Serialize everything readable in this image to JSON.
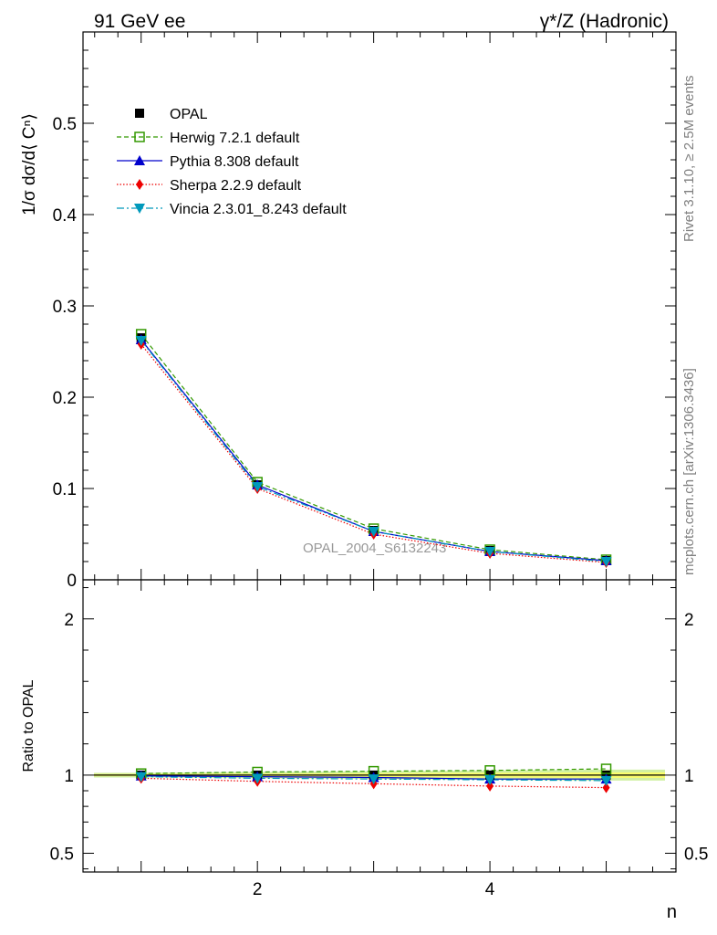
{
  "header": {
    "left": "91 GeV ee",
    "right": "γ*/Z (Hadronic)"
  },
  "side_labels": {
    "rivet": "Rivet 3.1.10, ≥ 2.5M events",
    "mcplots": "mcplots.cern.ch [arXiv:1306.3436]"
  },
  "reference_label": "OPAL_2004_S6132243",
  "colors": {
    "opal": "#000000",
    "herwig": "#339900",
    "pythia": "#0000cc",
    "sherpa": "#ee0000",
    "vincia": "#0099bb",
    "band_inner": "#ffff66",
    "band_outer": "#ccee99"
  },
  "chart_data": [
    {
      "type": "line",
      "panel": "main",
      "ylabel": "1/σ dσ/d⟨ Cⁿ⟩",
      "ylim": [
        0,
        0.6
      ],
      "xlim": [
        0.5,
        5.6
      ],
      "yticks": [
        0,
        0.1,
        0.2,
        0.3,
        0.4,
        0.5
      ],
      "ytick_labels": [
        "0",
        "0.1",
        "0.2",
        "0.3",
        "0.4",
        "0.5"
      ],
      "legend_position": "top-left",
      "x": [
        1,
        2,
        3,
        4,
        5
      ],
      "series": [
        {
          "name": "OPAL",
          "values": [
            0.265,
            0.104,
            0.054,
            0.032,
            0.021
          ]
        },
        {
          "name": "Herwig 7.2.1 default",
          "values": [
            0.269,
            0.107,
            0.056,
            0.033,
            0.022
          ]
        },
        {
          "name": "Pythia 8.308 default",
          "values": [
            0.263,
            0.104,
            0.053,
            0.031,
            0.021
          ]
        },
        {
          "name": "Sherpa 2.2.9 default",
          "values": [
            0.258,
            0.1,
            0.05,
            0.029,
            0.019
          ]
        },
        {
          "name": "Vincia 2.3.01_8.243 default",
          "values": [
            0.262,
            0.102,
            0.053,
            0.031,
            0.02
          ]
        }
      ]
    },
    {
      "type": "line",
      "panel": "ratio",
      "ylabel": "Ratio to OPAL",
      "xlabel": "n",
      "ylim": [
        0.38,
        2.25
      ],
      "xlim": [
        0.5,
        5.6
      ],
      "yticks": [
        0.5,
        1,
        2
      ],
      "ytick_labels": [
        "0.5",
        "1",
        "2"
      ],
      "xticks": [
        2,
        4
      ],
      "xtick_labels": [
        "2",
        "4"
      ],
      "x": [
        1,
        2,
        3,
        4,
        5
      ],
      "band_halfwidth": [
        0.015,
        0.02,
        0.025,
        0.03,
        0.035
      ],
      "series": [
        {
          "name": "OPAL",
          "values": [
            1.0,
            1.0,
            1.0,
            1.0,
            1.0
          ]
        },
        {
          "name": "Herwig 7.2.1 default",
          "values": [
            1.01,
            1.02,
            1.025,
            1.03,
            1.04
          ]
        },
        {
          "name": "Pythia 8.308 default",
          "values": [
            0.995,
            0.99,
            0.985,
            0.975,
            0.975
          ]
        },
        {
          "name": "Sherpa 2.2.9 default",
          "values": [
            0.98,
            0.96,
            0.945,
            0.93,
            0.92
          ]
        },
        {
          "name": "Vincia 2.3.01_8.243 default",
          "values": [
            0.99,
            0.98,
            0.975,
            0.97,
            0.965
          ]
        }
      ]
    }
  ]
}
